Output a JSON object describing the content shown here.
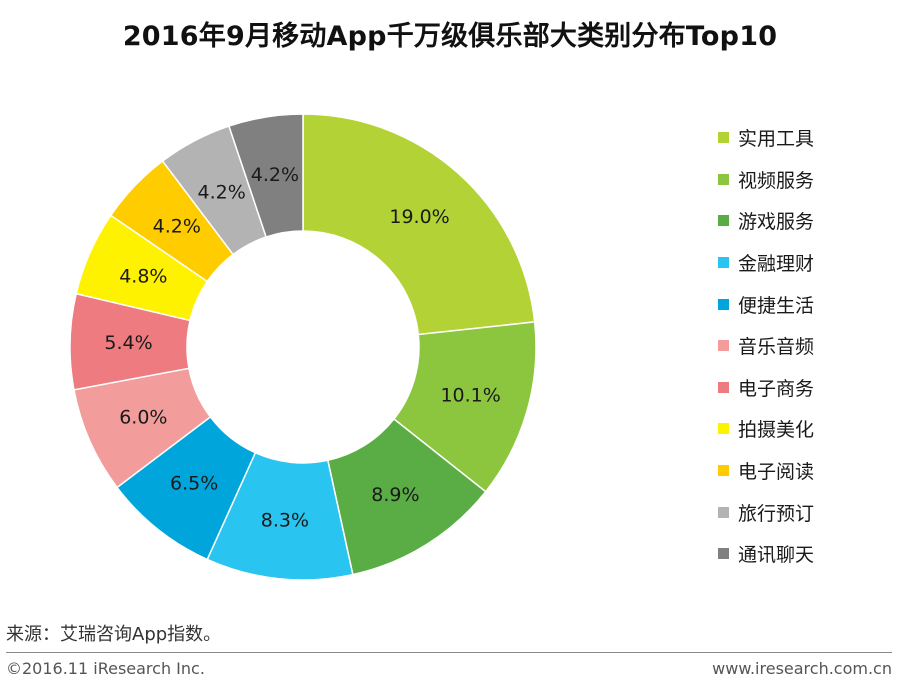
{
  "title": "2016年9月移动App千万级俱乐部大类别分布Top10",
  "chart_data": {
    "type": "pie",
    "style": "donut",
    "title": "2016年9月移动App千万级俱乐部大类别分布Top10",
    "legend_position": "right",
    "categories": [
      "实用工具",
      "视频服务",
      "游戏服务",
      "金融理财",
      "便捷生活",
      "音乐音频",
      "电子商务",
      "拍摄美化",
      "电子阅读",
      "旅行预订",
      "通讯聊天"
    ],
    "values": [
      19.0,
      10.1,
      8.9,
      8.3,
      6.5,
      6.0,
      5.4,
      4.8,
      4.2,
      4.2,
      4.2
    ],
    "value_labels": [
      "19.0%",
      "10.1%",
      "8.9%",
      "8.3%",
      "6.5%",
      "6.0%",
      "5.4%",
      "4.8%",
      "4.2%",
      "4.2%",
      "4.2%"
    ],
    "colors": [
      "#b2d235",
      "#8cc63f",
      "#5aac44",
      "#29c4f0",
      "#00a6db",
      "#f29c9c",
      "#ee7b7f",
      "#fff200",
      "#ffcc00",
      "#b3b3b3",
      "#808080"
    ]
  },
  "legend": {
    "items": [
      "实用工具",
      "视频服务",
      "游戏服务",
      "金融理财",
      "便捷生活",
      "音乐音频",
      "电子商务",
      "拍摄美化",
      "电子阅读",
      "旅行预订",
      "通讯聊天"
    ]
  },
  "footer": {
    "source": "来源：艾瑞咨询App指数。",
    "copyright": "©2016.11 iResearch Inc.",
    "website": "www.iresearch.com.cn"
  }
}
